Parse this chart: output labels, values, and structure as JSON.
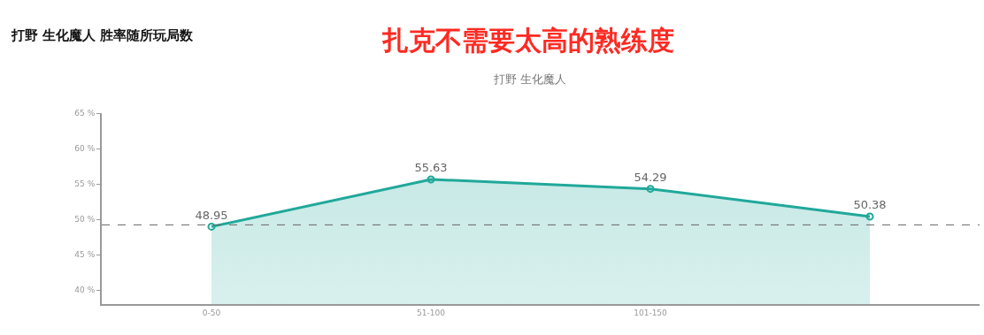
{
  "chart_data": {
    "type": "area",
    "title": "扎克不需要太高的熟练度",
    "subtitle": "打野 生化魔人",
    "annotations": [
      "打野 生化魔人 胜率随所玩局数"
    ],
    "categories": [
      "0-50",
      "51-100",
      "101-150",
      null
    ],
    "series": [
      {
        "color": "#20a89a",
        "values": [
          48.95,
          55.63,
          54.29,
          50.38
        ]
      }
    ],
    "ylim": [
      38,
      65
    ],
    "yticks": [
      {
        "value": 40,
        "label": "40 %"
      },
      {
        "value": 45,
        "label": "45 %"
      },
      {
        "value": 50,
        "label": "50 %"
      },
      {
        "value": 55,
        "label": "55 %"
      },
      {
        "value": 60,
        "label": "60 %"
      },
      {
        "value": 65,
        "label": "65 %"
      }
    ],
    "ref_lines": [
      {
        "axis": "y",
        "value": 49.2,
        "color": "#666666",
        "line_style": "dashed"
      }
    ],
    "data_labels": true,
    "marker": "circle",
    "line_style": "solid",
    "grid": false
  }
}
